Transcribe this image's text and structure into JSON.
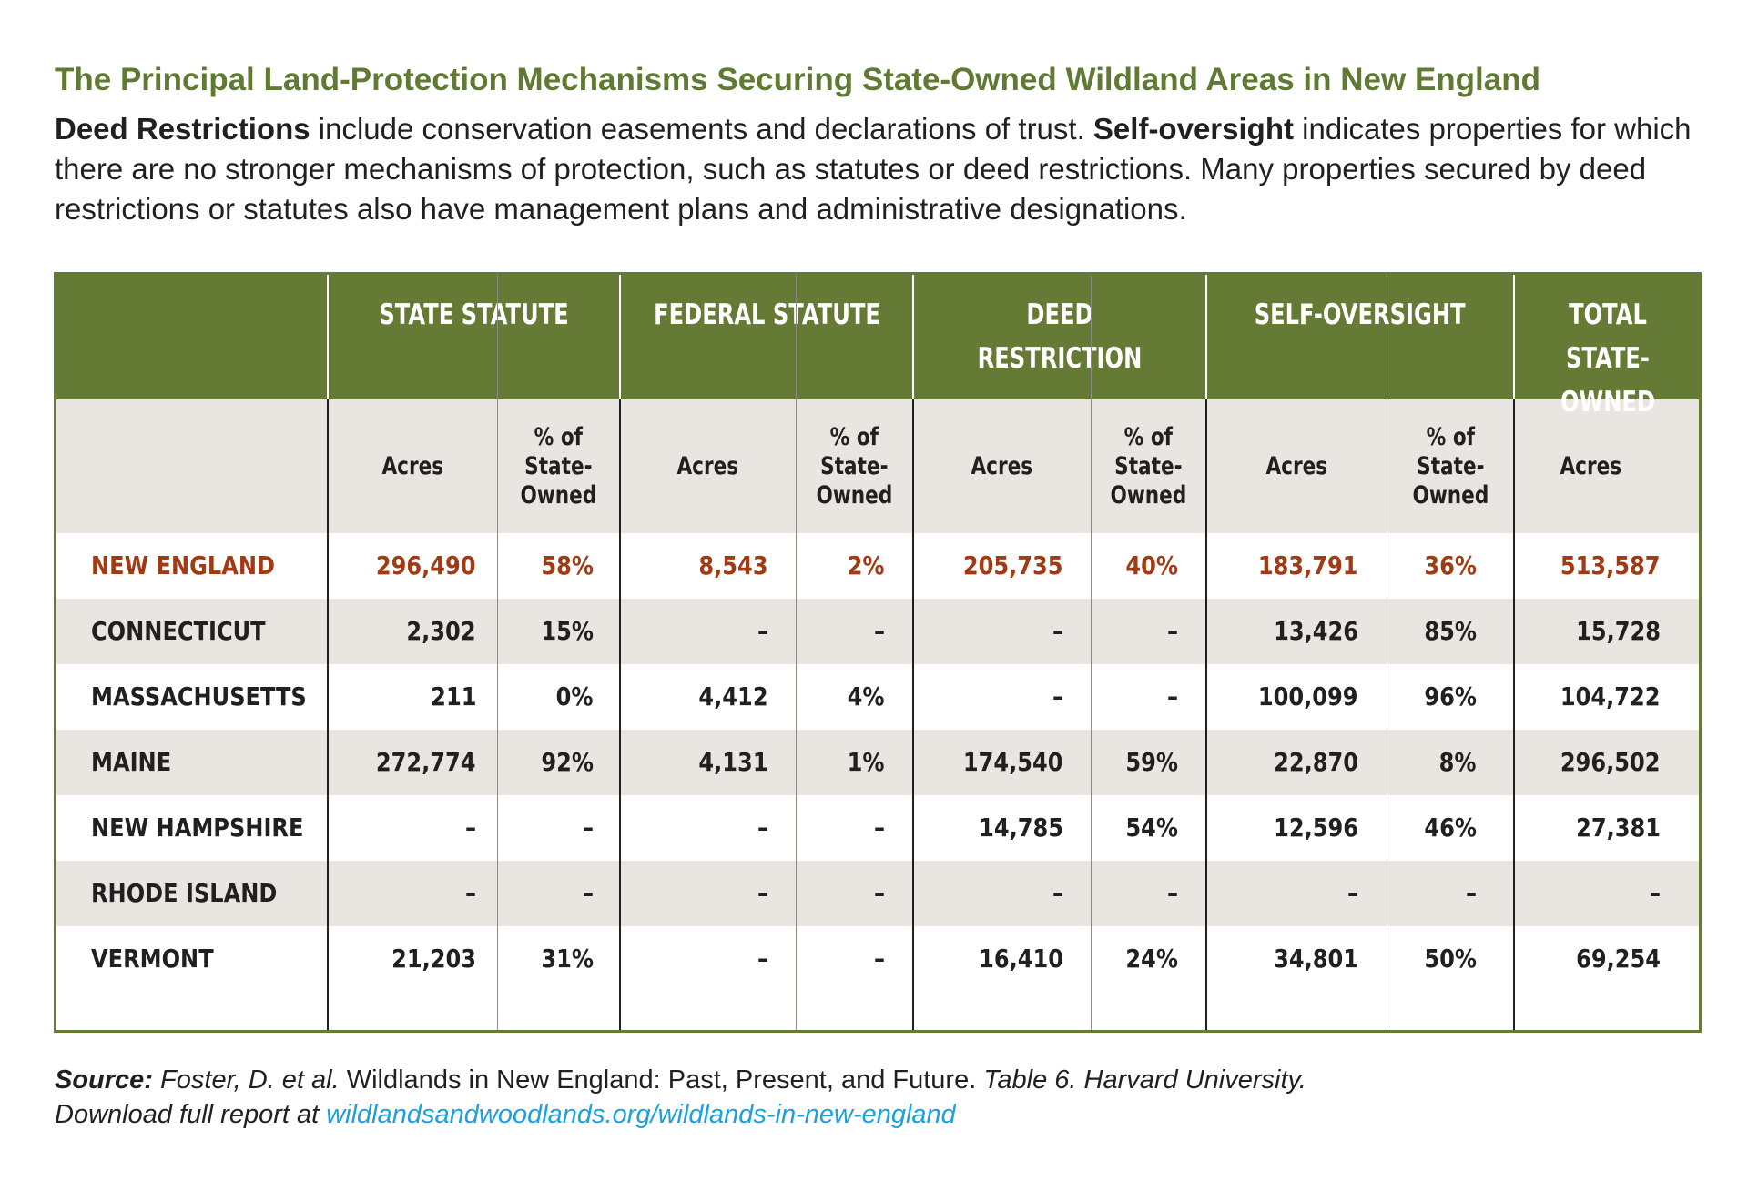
{
  "title": "The Principal Land-Protection Mechanisms Securing State-Owned Wildland Areas in New England",
  "subtitle": {
    "term1": "Deed Restrictions",
    "text1": " include conservation easements and declarations of trust. ",
    "term2": "Self-oversight",
    "text2": " indicates properties for which there are no stronger mechanisms of protection, such as statutes or deed restrictions. Many properties secured by deed restrictions or statutes also have management plans and administrative designations."
  },
  "colors": {
    "header_bg": "#657a35",
    "title_green": "#5f7a32",
    "highlight_red": "#a23a14",
    "shade": "#e9e6e1",
    "link_blue": "#1ea0d8"
  },
  "chart_data": {
    "type": "table",
    "groups": [
      "STATE STATUTE",
      "FEDERAL STATUTE",
      "DEED RESTRICTION",
      "SELF-OVERSIGHT",
      "TOTAL STATE-OWNED"
    ],
    "group_lines": {
      "total": [
        "TOTAL",
        "STATE-OWNED"
      ]
    },
    "subheaders": {
      "acres": "Acres",
      "pct": "% of\nState-\nOwned"
    },
    "columns": [
      "State Statute Acres",
      "State Statute %",
      "Federal Statute Acres",
      "Federal Statute %",
      "Deed Restriction Acres",
      "Deed Restriction %",
      "Self-Oversight Acres",
      "Self-Oversight %",
      "Total State-Owned Acres"
    ],
    "rows": [
      {
        "name": "NEW ENGLAND",
        "values": [
          "296,490",
          "58%",
          "8,543",
          "2%",
          "205,735",
          "40%",
          "183,791",
          "36%",
          "513,587"
        ]
      },
      {
        "name": "CONNECTICUT",
        "values": [
          "2,302",
          "15%",
          "–",
          "–",
          "–",
          "–",
          "13,426",
          "85%",
          "15,728"
        ]
      },
      {
        "name": "MASSACHUSETTS",
        "values": [
          "211",
          "0%",
          "4,412",
          "4%",
          "–",
          "–",
          "100,099",
          "96%",
          "104,722"
        ]
      },
      {
        "name": "MAINE",
        "values": [
          "272,774",
          "92%",
          "4,131",
          "1%",
          "174,540",
          "59%",
          "22,870",
          "8%",
          "296,502"
        ]
      },
      {
        "name": "NEW HAMPSHIRE",
        "values": [
          "–",
          "–",
          "–",
          "–",
          "14,785",
          "54%",
          "12,596",
          "46%",
          "27,381"
        ]
      },
      {
        "name": "RHODE ISLAND",
        "values": [
          "–",
          "–",
          "–",
          "–",
          "–",
          "–",
          "–",
          "–",
          "–"
        ]
      },
      {
        "name": "VERMONT",
        "values": [
          "21,203",
          "31%",
          "–",
          "–",
          "16,410",
          "24%",
          "34,801",
          "50%",
          "69,254"
        ]
      }
    ]
  },
  "source": {
    "label": "Source:",
    "authors": " Foster, D. et al.",
    "work": " Wildlands in New England: Past, Present, and Future.",
    "detail": " Table 6. Harvard University.",
    "download": "Download full report at ",
    "link": "wildlandsandwoodlands.org/wildlands-in-new-england"
  }
}
